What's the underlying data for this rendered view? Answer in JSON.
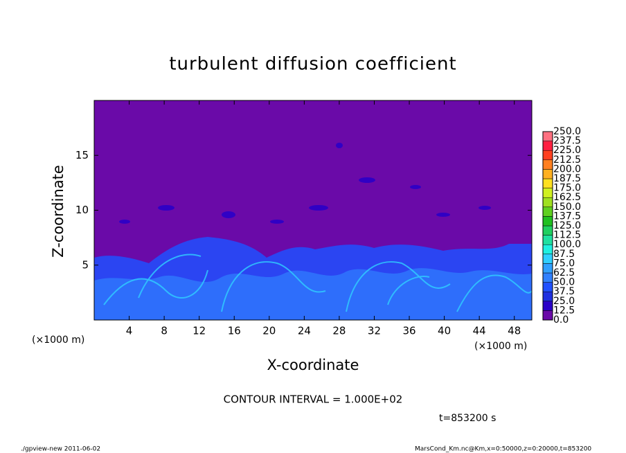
{
  "chart_data": {
    "type": "contour",
    "title": "turbulent diffusion coefficient",
    "x_label": "X-coordinate",
    "y_label": "Z-coordinate",
    "x_unit": "(×1000 m)",
    "xlim": [
      0,
      50
    ],
    "xticks": [
      4,
      8,
      12,
      16,
      20,
      24,
      28,
      32,
      36,
      40,
      44,
      48
    ],
    "ylim": [
      0,
      20
    ],
    "yticks": [
      5,
      10,
      15
    ],
    "colorbar": {
      "levels": [
        {
          "value": 0,
          "label": "0.0"
        },
        {
          "value": 12.5,
          "label": "12.5"
        },
        {
          "value": 25,
          "label": "25.0"
        },
        {
          "value": 37.5,
          "label": "37.5"
        },
        {
          "value": 50,
          "label": "50.0"
        },
        {
          "value": 62.5,
          "label": "62.5"
        },
        {
          "value": 75,
          "label": "75.0"
        },
        {
          "value": 87.5,
          "label": "87.5"
        },
        {
          "value": 100,
          "label": "100.0"
        },
        {
          "value": 112.5,
          "label": "112.5"
        },
        {
          "value": 125,
          "label": "125.0"
        },
        {
          "value": 137.5,
          "label": "137.5"
        },
        {
          "value": 150,
          "label": "150.0"
        },
        {
          "value": 162.5,
          "label": "162.5"
        },
        {
          "value": 175,
          "label": "175.0"
        },
        {
          "value": 187.5,
          "label": "187.5"
        },
        {
          "value": 200,
          "label": "200.0"
        },
        {
          "value": 212.5,
          "label": "212.5"
        },
        {
          "value": 225,
          "label": "225.0"
        },
        {
          "value": 237.5,
          "label": "237.5"
        },
        {
          "value": 250,
          "label": "250.0"
        }
      ],
      "colors": [
        "#6a0aa8",
        "#2a00c8",
        "#1f30e0",
        "#2050ff",
        "#3080ff",
        "#30a0ff",
        "#30d0ff",
        "#20f0e0",
        "#20e0a0",
        "#20d060",
        "#20c020",
        "#60d020",
        "#a0e020",
        "#d0f020",
        "#ffe020",
        "#ffb020",
        "#ff8020",
        "#ff4020",
        "#ff2040",
        "#ff7080"
      ]
    },
    "contour_interval": "CONTOUR INTERVAL = 1.000E+02",
    "time_label": "t=853200 s",
    "footer_left": "./gpview-new  2011-06-02",
    "footer_right": "MarsCond_Km.nc@Km,x=0:50000,z=0:20000,t=853200"
  }
}
